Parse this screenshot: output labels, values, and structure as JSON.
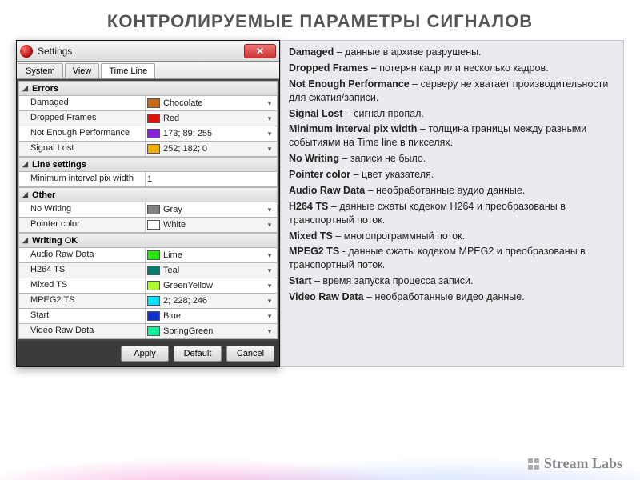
{
  "page_title": "КОНТРОЛИРУЕМЫЕ ПАРАМЕТРЫ СИГНАЛОВ",
  "window": {
    "title": "Settings",
    "tabs": [
      "System",
      "View",
      "Time Line"
    ],
    "active_tab": 2,
    "buttons": {
      "apply": "Apply",
      "default": "Default",
      "cancel": "Cancel"
    },
    "sections": [
      {
        "title": "Errors",
        "rows": [
          {
            "label": "Damaged",
            "color": "#c46a1e",
            "value": "Chocolate"
          },
          {
            "label": "Dropped Frames",
            "color": "#e01010",
            "value": "Red"
          },
          {
            "label": "Not Enough Performance",
            "color": "#8a25d6",
            "value": "173; 89; 255"
          },
          {
            "label": "Signal Lost",
            "color": "#f2b000",
            "value": "252; 182; 0"
          }
        ]
      },
      {
        "title": "Line settings",
        "rows": [
          {
            "label": "Minimum interval pix width",
            "value": "1"
          }
        ]
      },
      {
        "title": "Other",
        "rows": [
          {
            "label": "No Writing",
            "color": "#808080",
            "value": "Gray"
          },
          {
            "label": "Pointer color",
            "color": "#ffffff",
            "value": "White"
          }
        ]
      },
      {
        "title": "Writing OK",
        "rows": [
          {
            "label": "Audio Raw Data",
            "color": "#26e810",
            "value": "Lime"
          },
          {
            "label": "H264 TS",
            "color": "#0a7a6e",
            "value": "Teal"
          },
          {
            "label": "Mixed TS",
            "color": "#b1fa2e",
            "value": "GreenYellow"
          },
          {
            "label": "MPEG2 TS",
            "color": "#02e4f6",
            "value": "2; 228; 246"
          },
          {
            "label": "Start",
            "color": "#1030d0",
            "value": "Blue"
          },
          {
            "label": "Video Raw Data",
            "color": "#10f098",
            "value": "SpringGreen"
          }
        ]
      }
    ]
  },
  "desc": [
    {
      "term": "Damaged",
      "text": " – данные в архиве разрушены."
    },
    {
      "term": "Dropped Frames –",
      "text": " потерян кадр или несколько кадров."
    },
    {
      "term": "Not Enough Performance",
      "text": " – серверу не хватает производительности для сжатия/записи."
    },
    {
      "term": "Signal Lost",
      "text": " – сигнал пропал."
    },
    {
      "term": "Minimum interval pix width",
      "text": " – толщина границы между разными событиями на Time line в пикселях."
    },
    {
      "term": "No Writing",
      "text": " – записи не было."
    },
    {
      "term": "Pointer color",
      "text": " – цвет указателя."
    },
    {
      "term": "Audio Raw Data",
      "text": " – необработанные аудио данные."
    },
    {
      "term": "H264 TS",
      "text": " – данные сжаты кодеком H264 и преобразованы в транспортный поток."
    },
    {
      "term": "Mixed TS",
      "text": " – многопрограммный поток."
    },
    {
      "term": "MPEG2 TS",
      "text": " - данные сжаты кодеком MPEG2 и преобразованы в транспортный поток."
    },
    {
      "term": "Start",
      "text": " – время запуска процесса записи."
    },
    {
      "term": "Video Raw Data",
      "text": " – необработанные видео данные."
    }
  ],
  "logo_text": "Stream Labs"
}
